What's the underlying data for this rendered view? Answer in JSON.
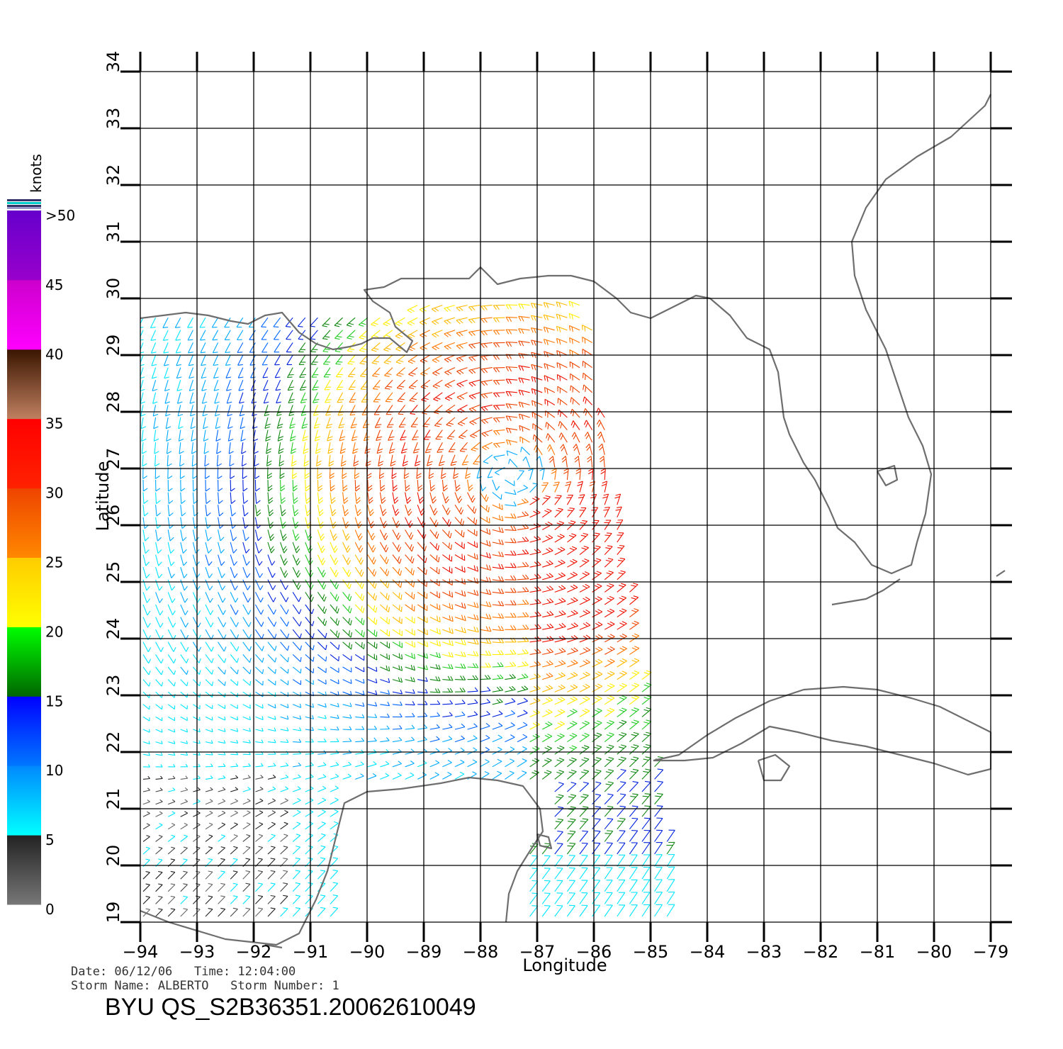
{
  "map": {
    "x_axis_title": "Longitude",
    "y_axis_title": "Latitude",
    "lon_ticks": [
      "-94",
      "-93",
      "-92",
      "-91",
      "-90",
      "-89",
      "-88",
      "-87",
      "-86",
      "-85",
      "-84",
      "-83",
      "-82",
      "-81",
      "-80",
      "-79"
    ],
    "lat_ticks": [
      "19",
      "20",
      "21",
      "22",
      "23",
      "24",
      "25",
      "26",
      "27",
      "28",
      "29",
      "30",
      "31",
      "32",
      "33",
      "34"
    ],
    "lon_range": [
      -94,
      -79
    ],
    "lat_range": [
      19,
      34
    ],
    "grid": true
  },
  "scale": {
    "unit_label": "knots",
    "labels": [
      ">50",
      "45",
      "40",
      "35",
      "30",
      "25",
      "20",
      "15",
      "10",
      "5",
      "0"
    ],
    "colors": {
      "0_5": [
        "#777777",
        "#222222"
      ],
      "5_10": [
        "#00ffff",
        "#0088ff"
      ],
      "10_15": [
        "#0077ff",
        "#0000ff"
      ],
      "15_20": [
        "#006600",
        "#00ff00"
      ],
      "20_25": [
        "#ffff00",
        "#ffcc00"
      ],
      "25_30": [
        "#ff8800",
        "#ee4400"
      ],
      "30_35": [
        "#ff2200",
        "#ff0000"
      ],
      "35_40": [
        "#c08060",
        "#3a1500"
      ],
      "40_45": [
        "#ff00ff",
        "#cc00cc"
      ],
      "45_50": [
        "#9900cc",
        "#6600cc"
      ]
    }
  },
  "info": {
    "date_line": "Date: 06/12/06   Time: 12:04:00",
    "storm_line": "Storm Name: ALBERTO   Storm Number: 1",
    "id_line": "BYU QS_S2B36351.20062610049"
  },
  "storm": {
    "center_lon": -87.5,
    "center_lat": 26.9
  },
  "colors": {
    "coast": "#6e6e6e",
    "grid": "#000000"
  }
}
